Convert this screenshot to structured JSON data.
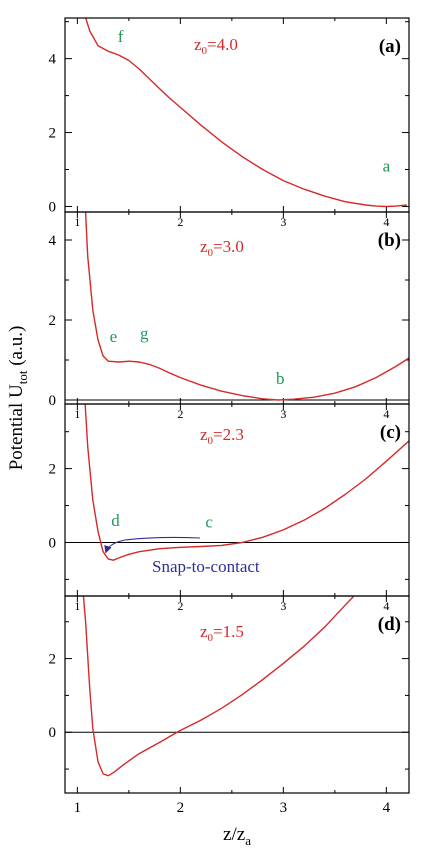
{
  "colors": {
    "curve": "#d42a2a",
    "z0_text": "#d42a2a",
    "point_labels": "#1f9a55",
    "annotation": "#2e2e9a",
    "axis": "#000000"
  },
  "axes": {
    "ylabel_main": "Potential U",
    "ylabel_sub": "tot",
    "ylabel_unit": " (a.u.)",
    "xlabel_main": "z/z",
    "xlabel_sub": "a"
  },
  "chart_data": [
    {
      "type": "line",
      "panel_label": "(a)",
      "z0_text": "z",
      "z0_sub": "0",
      "z0_value": "=4.0",
      "xlim": [
        0.88,
        4.22
      ],
      "ylim": [
        -0.15,
        5.1
      ],
      "yticks": [
        0,
        2,
        4
      ],
      "ytick_labels": [
        "0",
        "2",
        "4"
      ],
      "xticks": [
        1,
        2,
        3,
        4
      ],
      "xtick_labels": [],
      "zero_line": false,
      "points": [
        [
          1.07,
          5.2
        ],
        [
          1.12,
          4.75
        ],
        [
          1.2,
          4.35
        ],
        [
          1.3,
          4.2
        ],
        [
          1.4,
          4.1
        ],
        [
          1.5,
          3.95
        ],
        [
          1.6,
          3.72
        ],
        [
          1.7,
          3.45
        ],
        [
          1.8,
          3.18
        ],
        [
          1.9,
          2.92
        ],
        [
          2.0,
          2.68
        ],
        [
          2.2,
          2.2
        ],
        [
          2.4,
          1.75
        ],
        [
          2.6,
          1.35
        ],
        [
          2.8,
          1.0
        ],
        [
          3.0,
          0.7
        ],
        [
          3.2,
          0.47
        ],
        [
          3.4,
          0.28
        ],
        [
          3.6,
          0.13
        ],
        [
          3.8,
          0.04
        ],
        [
          3.9,
          0.01
        ],
        [
          4.0,
          0.0
        ],
        [
          4.1,
          0.01
        ],
        [
          4.2,
          0.04
        ]
      ],
      "annotations": [
        {
          "label": "f",
          "x": 1.42,
          "y": 4.45
        },
        {
          "label": "a",
          "x": 4.0,
          "y": 0.95
        }
      ]
    },
    {
      "type": "line",
      "panel_label": "(b)",
      "z0_text": "z",
      "z0_sub": "0",
      "z0_value": "=3.0",
      "xlim": [
        0.88,
        4.22
      ],
      "ylim": [
        -0.1,
        4.7
      ],
      "yticks": [
        0,
        2,
        4
      ],
      "ytick_labels": [
        "0",
        "2",
        "4"
      ],
      "xticks": [
        1,
        2,
        3,
        4
      ],
      "xtick_labels": [
        "1",
        "2",
        "3",
        "4"
      ],
      "zero_line": true,
      "points": [
        [
          1.07,
          5.2
        ],
        [
          1.1,
          3.6
        ],
        [
          1.15,
          2.25
        ],
        [
          1.2,
          1.5
        ],
        [
          1.25,
          1.1
        ],
        [
          1.3,
          0.97
        ],
        [
          1.4,
          0.95
        ],
        [
          1.5,
          0.97
        ],
        [
          1.6,
          0.95
        ],
        [
          1.7,
          0.89
        ],
        [
          1.8,
          0.79
        ],
        [
          1.9,
          0.67
        ],
        [
          2.0,
          0.56
        ],
        [
          2.2,
          0.37
        ],
        [
          2.4,
          0.22
        ],
        [
          2.6,
          0.11
        ],
        [
          2.8,
          0.03
        ],
        [
          2.95,
          0.0
        ],
        [
          3.1,
          0.02
        ],
        [
          3.3,
          0.07
        ],
        [
          3.5,
          0.17
        ],
        [
          3.7,
          0.33
        ],
        [
          3.9,
          0.56
        ],
        [
          4.1,
          0.85
        ],
        [
          4.22,
          1.05
        ]
      ],
      "annotations": [
        {
          "label": "e",
          "x": 1.35,
          "y": 1.45
        },
        {
          "label": "g",
          "x": 1.65,
          "y": 1.52
        },
        {
          "label": "b",
          "x": 2.97,
          "y": 0.4
        }
      ]
    },
    {
      "type": "line",
      "panel_label": "(c)",
      "z0_text": "z",
      "z0_sub": "0",
      "z0_value": "=2.3",
      "xlim": [
        0.88,
        4.22
      ],
      "ylim": [
        -1.45,
        3.75
      ],
      "yticks": [
        0,
        2
      ],
      "ytick_labels": [
        "0",
        "2"
      ],
      "xticks": [
        1,
        2,
        3,
        4
      ],
      "xtick_labels": [
        "1",
        "2",
        "3",
        "4"
      ],
      "zero_line": true,
      "points": [
        [
          1.07,
          4.0
        ],
        [
          1.1,
          2.6
        ],
        [
          1.15,
          1.15
        ],
        [
          1.2,
          0.3
        ],
        [
          1.25,
          -0.25
        ],
        [
          1.3,
          -0.45
        ],
        [
          1.35,
          -0.48
        ],
        [
          1.4,
          -0.42
        ],
        [
          1.5,
          -0.32
        ],
        [
          1.6,
          -0.25
        ],
        [
          1.8,
          -0.17
        ],
        [
          2.0,
          -0.13
        ],
        [
          2.2,
          -0.11
        ],
        [
          2.4,
          -0.08
        ],
        [
          2.6,
          0.0
        ],
        [
          2.8,
          0.14
        ],
        [
          3.0,
          0.34
        ],
        [
          3.2,
          0.6
        ],
        [
          3.4,
          0.92
        ],
        [
          3.6,
          1.3
        ],
        [
          3.8,
          1.72
        ],
        [
          4.0,
          2.2
        ],
        [
          4.22,
          2.75
        ]
      ],
      "annotations": [
        {
          "label": "d",
          "x": 1.37,
          "y": 0.45
        },
        {
          "label": "c",
          "x": 2.28,
          "y": 0.4
        }
      ],
      "arrow_label": "Snap-to-contact"
    },
    {
      "type": "line",
      "panel_label": "(d)",
      "z0_text": "z",
      "z0_sub": "0",
      "z0_value": "=1.5",
      "xlim": [
        0.88,
        4.22
      ],
      "ylim": [
        -1.65,
        3.7
      ],
      "yticks": [
        0,
        2
      ],
      "ytick_labels": [
        "0",
        "2"
      ],
      "xticks": [
        1,
        2,
        3,
        4
      ],
      "xtick_labels": [
        "1",
        "2",
        "3",
        "4"
      ],
      "bottom_xtick_labels": [
        "1",
        "2",
        "3",
        "4"
      ],
      "zero_line": true,
      "points": [
        [
          1.05,
          4.0
        ],
        [
          1.08,
          3.0
        ],
        [
          1.12,
          1.2
        ],
        [
          1.15,
          0.1
        ],
        [
          1.2,
          -0.8
        ],
        [
          1.25,
          -1.13
        ],
        [
          1.3,
          -1.18
        ],
        [
          1.35,
          -1.1
        ],
        [
          1.45,
          -0.88
        ],
        [
          1.6,
          -0.58
        ],
        [
          1.8,
          -0.27
        ],
        [
          2.0,
          0.05
        ],
        [
          2.2,
          0.33
        ],
        [
          2.4,
          0.65
        ],
        [
          2.6,
          1.02
        ],
        [
          2.8,
          1.43
        ],
        [
          3.0,
          1.87
        ],
        [
          3.2,
          2.33
        ],
        [
          3.4,
          2.85
        ],
        [
          3.6,
          3.45
        ],
        [
          3.72,
          3.8
        ]
      ],
      "annotations": []
    }
  ]
}
